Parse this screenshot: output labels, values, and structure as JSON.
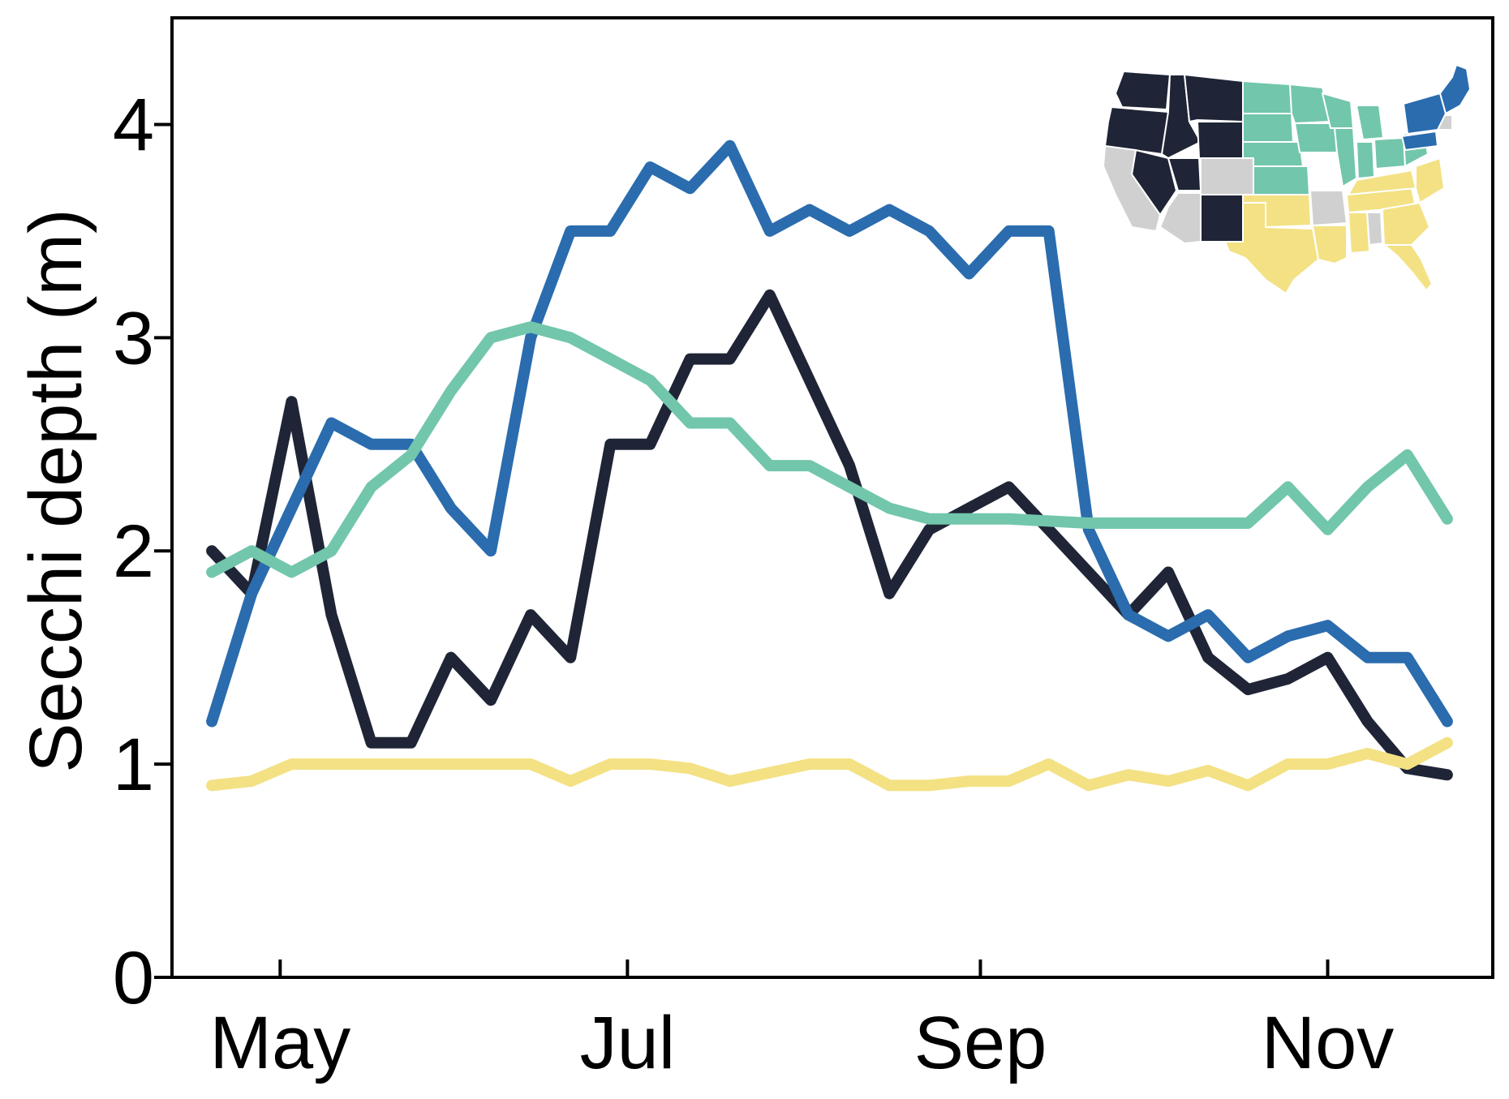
{
  "chart_data": {
    "type": "line",
    "title": "",
    "xlabel": "",
    "ylabel": "Secchi depth (m)",
    "ylim": [
      0,
      4.5
    ],
    "xlim": [
      "2021-04-12",
      "2021-11-30"
    ],
    "yticks": [
      0,
      1,
      2,
      3,
      4
    ],
    "xticks": [
      {
        "date": "2021-05-01",
        "label": "May"
      },
      {
        "date": "2021-07-01",
        "label": "Jul"
      },
      {
        "date": "2021-09-01",
        "label": "Sep"
      },
      {
        "date": "2021-11-01",
        "label": "Nov"
      }
    ],
    "grid": false,
    "legend": "none",
    "inset": "US map (top-right) with states shaded by region color",
    "x": [
      "2021-04-19",
      "2021-04-26",
      "2021-05-03",
      "2021-05-10",
      "2021-05-17",
      "2021-05-24",
      "2021-05-31",
      "2021-06-07",
      "2021-06-14",
      "2021-06-21",
      "2021-06-28",
      "2021-07-05",
      "2021-07-12",
      "2021-07-19",
      "2021-07-26",
      "2021-08-02",
      "2021-08-09",
      "2021-08-16",
      "2021-08-23",
      "2021-08-30",
      "2021-09-06",
      "2021-09-13",
      "2021-09-20",
      "2021-09-27",
      "2021-10-04",
      "2021-10-11",
      "2021-10-18",
      "2021-10-25",
      "2021-11-01",
      "2021-11-08",
      "2021-11-15",
      "2021-11-22"
    ],
    "series": [
      {
        "color": "#1f2536",
        "values": [
          2.0,
          1.8,
          2.7,
          1.7,
          1.1,
          1.1,
          1.5,
          1.3,
          1.7,
          1.5,
          2.5,
          2.5,
          2.9,
          2.9,
          3.2,
          2.8,
          2.4,
          1.8,
          2.1,
          2.2,
          2.3,
          2.1,
          1.9,
          1.7,
          1.9,
          1.5,
          1.35,
          1.4,
          1.5,
          1.2,
          0.98,
          0.95
        ]
      },
      {
        "color": "#2a6cae",
        "values": [
          1.2,
          1.8,
          2.2,
          2.6,
          2.5,
          2.5,
          2.2,
          2.0,
          3.0,
          3.5,
          3.5,
          3.8,
          3.7,
          3.9,
          3.5,
          3.6,
          3.5,
          3.6,
          3.5,
          3.3,
          3.5,
          3.5,
          2.1,
          1.7,
          1.6,
          1.7,
          1.5,
          1.6,
          1.65,
          1.5,
          1.5,
          1.2
        ]
      },
      {
        "color": "#72c6ab",
        "values": [
          1.9,
          2.0,
          1.9,
          2.0,
          2.3,
          2.45,
          2.75,
          3.0,
          3.05,
          3.0,
          2.9,
          2.8,
          2.6,
          2.6,
          2.4,
          2.4,
          2.3,
          2.2,
          2.15,
          2.15,
          2.15,
          2.14,
          2.13,
          2.13,
          2.13,
          2.13,
          2.13,
          2.3,
          2.1,
          2.3,
          2.45,
          2.15
        ]
      },
      {
        "color": "#f3e184",
        "values": [
          0.9,
          0.92,
          1.0,
          1.0,
          1.0,
          1.0,
          1.0,
          1.0,
          1.0,
          0.92,
          1.0,
          1.0,
          0.98,
          0.92,
          0.96,
          1.0,
          1.0,
          0.9,
          0.9,
          0.92,
          0.92,
          1.0,
          0.9,
          0.95,
          0.92,
          0.97,
          0.9,
          1.0,
          1.0,
          1.05,
          1.0,
          1.1
        ]
      }
    ]
  },
  "map_regions": {
    "northwest": "#1f2536",
    "midwest": "#72c6ab",
    "northeast": "#2a6cae",
    "south": "#f3e184",
    "other": "#d0d0d0"
  }
}
